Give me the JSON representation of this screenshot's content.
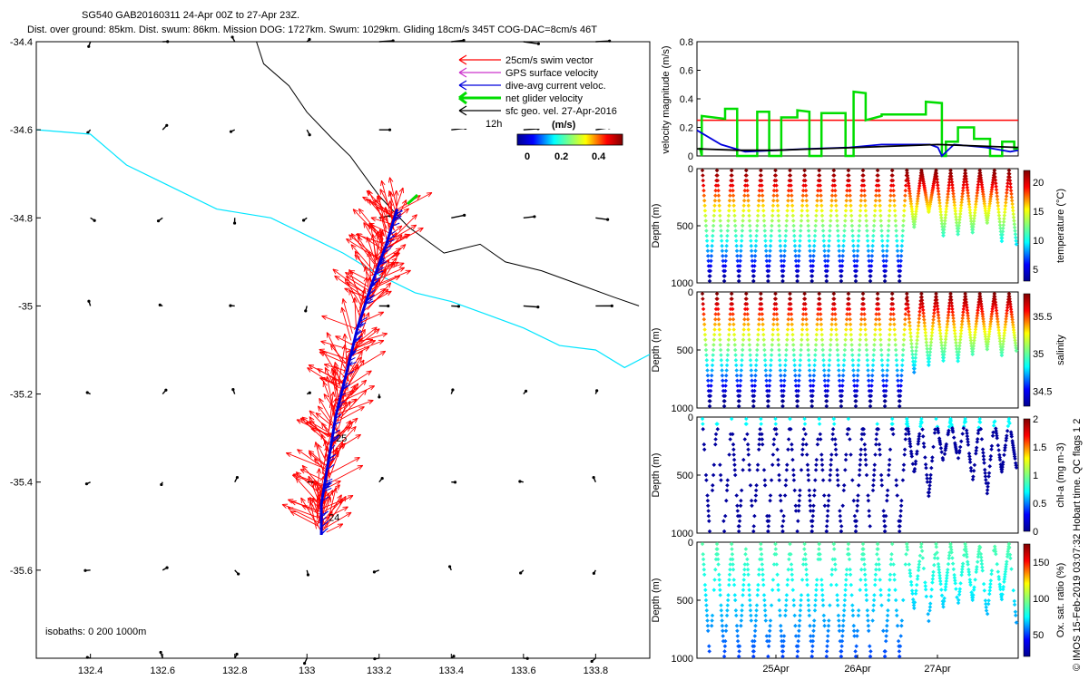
{
  "title_line1": "SG540 GAB20160311 24-Apr 00Z to 27-Apr 23Z.",
  "title_line2": "Dist. over ground: 85km. Dist. swum: 86km. Mission DOG: 1727km. Swum: 1029km. Gliding 18cm/s 345T COG-DAC=8cm/s 46T",
  "credit": "© IMOS 15-Feb-2019 03:07:32 Hobart time. QC flags 1  2",
  "colors": {
    "swim": "#ff0000",
    "gps": "#cc33cc",
    "dac": "#0000dd",
    "net": "#00dd00",
    "sfc": "#000000",
    "isobath200": "#00e5ff",
    "isobath1000": "#000000"
  },
  "chart_data": [
    {
      "type": "scatter",
      "name": "track-map",
      "xlim": [
        132.25,
        133.95
      ],
      "ylim": [
        -35.8,
        -34.4
      ],
      "xticks": [
        "132.4",
        "132.6",
        "132.8",
        "133",
        "133.2",
        "133.4",
        "133.6",
        "133.8"
      ],
      "yticks": [
        "-34.4",
        "-34.6",
        "-34.8",
        "-35",
        "-35.2",
        "-35.4",
        "-35.6"
      ],
      "legend": {
        "position": "top-right",
        "entries": [
          "25cm/s swim vector",
          "GPS surface velocity",
          "dive-avg current veloc.",
          "net glider velocity",
          "sfc geo. vel. 27-Apr-2016"
        ],
        "time_label": "12h",
        "colorbar_unit": "(m/s)",
        "colorbar_ticks": [
          "0",
          "0.2",
          "0.4"
        ]
      },
      "isobath_note": "isobaths: 0   200  1000m",
      "track_labels": [
        {
          "text": "25",
          "lon": 133.07,
          "lat": -35.3
        },
        {
          "text": "24",
          "lon": 133.05,
          "lat": -35.48
        }
      ],
      "track": [
        [
          133.25,
          -34.78
        ],
        [
          133.22,
          -34.86
        ],
        [
          133.18,
          -34.95
        ],
        [
          133.14,
          -35.05
        ],
        [
          133.11,
          -35.15
        ],
        [
          133.08,
          -35.25
        ],
        [
          133.06,
          -35.35
        ],
        [
          133.04,
          -35.45
        ],
        [
          133.04,
          -35.52
        ]
      ],
      "isobath_200": [
        [
          132.25,
          -34.6
        ],
        [
          132.4,
          -34.61
        ],
        [
          132.5,
          -34.68
        ],
        [
          132.6,
          -34.72
        ],
        [
          132.75,
          -34.78
        ],
        [
          132.9,
          -34.8
        ],
        [
          133.0,
          -34.84
        ],
        [
          133.1,
          -34.88
        ],
        [
          133.2,
          -34.93
        ],
        [
          133.3,
          -34.97
        ],
        [
          133.4,
          -34.99
        ],
        [
          133.5,
          -35.02
        ],
        [
          133.6,
          -35.05
        ],
        [
          133.7,
          -35.09
        ],
        [
          133.8,
          -35.1
        ],
        [
          133.88,
          -35.14
        ],
        [
          133.95,
          -35.11
        ]
      ],
      "isobath_1000": [
        [
          132.86,
          -34.4
        ],
        [
          132.88,
          -34.45
        ],
        [
          132.95,
          -34.5
        ],
        [
          133.0,
          -34.56
        ],
        [
          133.07,
          -34.62
        ],
        [
          133.12,
          -34.66
        ],
        [
          133.2,
          -34.75
        ],
        [
          133.28,
          -34.82
        ],
        [
          133.38,
          -34.88
        ],
        [
          133.48,
          -34.86
        ],
        [
          133.55,
          -34.9
        ],
        [
          133.65,
          -34.92
        ],
        [
          133.75,
          -34.95
        ],
        [
          133.85,
          -34.98
        ],
        [
          133.92,
          -35.0
        ]
      ]
    },
    {
      "type": "line",
      "name": "velocity-timeseries",
      "ylabel": "velocity magnitude (m/s)",
      "ylim": [
        0,
        0.8
      ],
      "yticks": [
        "0",
        "0.2",
        "0.4",
        "0.6",
        "0.8"
      ],
      "xlim": [
        0,
        4
      ],
      "series": [
        {
          "name": "swim",
          "color": "#ff0000",
          "x": [
            0,
            4
          ],
          "y": [
            0.25,
            0.25
          ]
        },
        {
          "name": "net",
          "color": "#00dd00",
          "x": [
            0.02,
            0.04,
            0.06,
            0.06,
            0.35,
            0.35,
            0.5,
            0.5,
            0.75,
            0.75,
            0.9,
            0.9,
            1.05,
            1.05,
            1.25,
            1.25,
            1.4,
            1.4,
            1.55,
            1.55,
            1.85,
            1.85,
            1.95,
            1.95,
            2.1,
            2.1,
            2.3,
            2.3,
            2.85,
            2.85,
            3.05,
            3.05,
            3.1,
            3.1,
            3.25,
            3.25,
            3.45,
            3.45,
            3.65,
            3.65,
            3.8,
            3.8,
            3.95,
            3.95,
            4.0
          ],
          "y": [
            0.05,
            0.05,
            0.0,
            0.28,
            0.26,
            0.33,
            0.33,
            0.0,
            0.0,
            0.31,
            0.31,
            0.0,
            0.0,
            0.27,
            0.27,
            0.32,
            0.31,
            0.0,
            0.0,
            0.3,
            0.3,
            0.0,
            0.0,
            0.45,
            0.44,
            0.25,
            0.28,
            0.29,
            0.29,
            0.38,
            0.37,
            0.0,
            0.0,
            0.1,
            0.1,
            0.2,
            0.2,
            0.12,
            0.12,
            0.0,
            0.0,
            0.1,
            0.1,
            0.05,
            0.05
          ]
        },
        {
          "name": "dac",
          "color": "#0000dd",
          "x": [
            0,
            0.3,
            0.6,
            1.0,
            1.4,
            1.9,
            2.3,
            2.9,
            3.0,
            3.05,
            3.2,
            3.6,
            3.9,
            4.0
          ],
          "y": [
            0.18,
            0.08,
            0.03,
            0.04,
            0.05,
            0.06,
            0.08,
            0.08,
            0.06,
            0.0,
            0.08,
            0.06,
            0.03,
            0.04
          ]
        },
        {
          "name": "sfc",
          "color": "#000000",
          "x": [
            0,
            0.5,
            1.0,
            1.5,
            2.0,
            2.5,
            3.0,
            3.5,
            4.0
          ],
          "y": [
            0.05,
            0.04,
            0.04,
            0.05,
            0.06,
            0.07,
            0.08,
            0.07,
            0.06
          ]
        }
      ]
    },
    {
      "type": "scatter",
      "name": "temperature-profile",
      "ylabel": "Depth (m)",
      "clabel": "temperature (°C)",
      "yticks": [
        "0",
        "500",
        "1000"
      ],
      "cticks": [
        "5",
        "10",
        "15",
        "20"
      ],
      "clim": [
        3,
        22
      ]
    },
    {
      "type": "scatter",
      "name": "salinity-profile",
      "ylabel": "Depth (m)",
      "clabel": "salinity",
      "yticks": [
        "0",
        "500",
        "1000"
      ],
      "cticks": [
        "34.5",
        "35",
        "35.5"
      ],
      "clim": [
        34.3,
        35.8
      ]
    },
    {
      "type": "scatter",
      "name": "chla-profile",
      "ylabel": "Depth (m)",
      "clabel": "chl-a (mg m-3)",
      "yticks": [
        "0",
        "500",
        "1000"
      ],
      "cticks": [
        "0",
        "0.5",
        "1",
        "1.5",
        "2"
      ],
      "clim": [
        0,
        2
      ]
    },
    {
      "type": "scatter",
      "name": "oxygen-profile",
      "ylabel": "Depth (m)",
      "clabel": "Ox. sat. ratio (%)",
      "yticks": [
        "0",
        "500",
        "1000"
      ],
      "cticks": [
        "50",
        "100",
        "150"
      ],
      "clim": [
        20,
        175
      ],
      "xticks": [
        "25Apr",
        "26Apr",
        "27Apr"
      ]
    }
  ]
}
